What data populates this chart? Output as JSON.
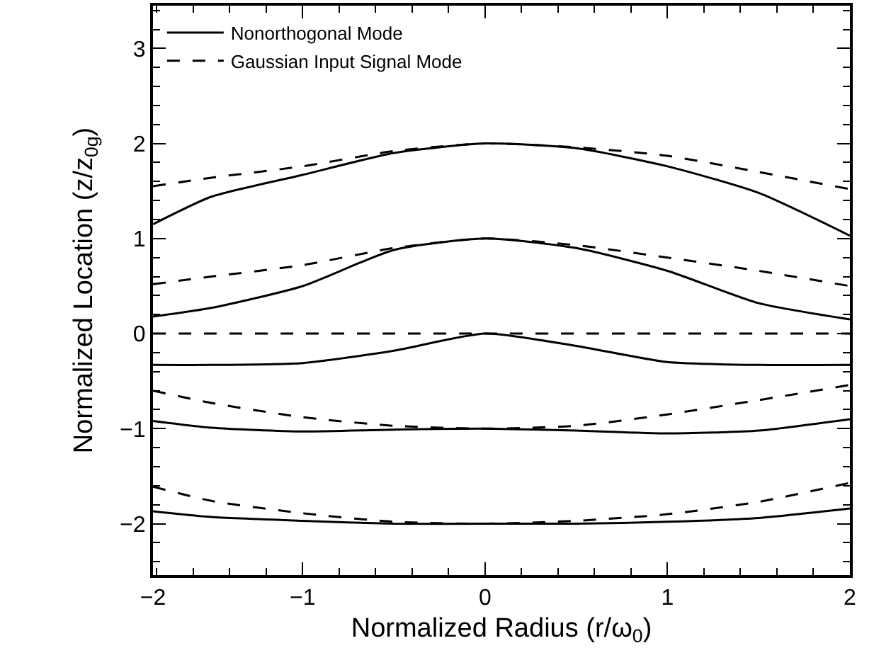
{
  "chart_data": {
    "type": "line",
    "xlabel": "Normalized Radius (r/ω$_{0}$)",
    "ylabel": "Normalized Location (z/z$_{0g}$)",
    "x": [
      -1.82,
      -1.5,
      -1,
      -0.5,
      0,
      0.5,
      1,
      1.5,
      2
    ],
    "series": [
      {
        "name": "Nonorthogonal Mode",
        "color": "#000000",
        "line_style": "solid",
        "values": [
          1.15,
          1.44,
          1.67,
          1.9,
          2,
          1.95,
          1.76,
          1.48,
          1.03
        ]
      },
      {
        "name": "Gaussian Input Signal Mode",
        "color": "#000000",
        "line_style": "dashed",
        "values": [
          1.55,
          1.64,
          1.76,
          1.92,
          2,
          1.96,
          1.87,
          1.7,
          1.52
        ]
      },
      {
        "color": "#000000",
        "line_style": "solid",
        "values": [
          0.18,
          0.27,
          0.5,
          0.88,
          1,
          0.9,
          0.66,
          0.32,
          0.15
        ]
      },
      {
        "color": "#000000",
        "line_style": "dashed",
        "values": [
          0.52,
          0.6,
          0.72,
          0.9,
          1,
          0.93,
          0.8,
          0.66,
          0.5
        ]
      },
      {
        "color": "#000000",
        "line_style": "solid",
        "values": [
          -0.33,
          -0.33,
          -0.31,
          -0.18,
          0,
          -0.13,
          -0.3,
          -0.33,
          -0.33
        ]
      },
      {
        "color": "#000000",
        "line_style": "dashed",
        "values": [
          0,
          0,
          0,
          0,
          0,
          0,
          0,
          0,
          0
        ]
      },
      {
        "color": "#000000",
        "line_style": "solid",
        "values": [
          -0.92,
          -0.99,
          -1.03,
          -1.01,
          -1,
          -1.02,
          -1.05,
          -1.02,
          -0.9
        ]
      },
      {
        "color": "#000000",
        "line_style": "dashed",
        "values": [
          -0.6,
          -0.73,
          -0.88,
          -0.97,
          -1,
          -0.97,
          -0.85,
          -0.7,
          -0.54
        ]
      },
      {
        "color": "#000000",
        "line_style": "solid",
        "values": [
          -1.87,
          -1.93,
          -1.97,
          -2,
          -2,
          -2,
          -1.98,
          -1.94,
          -1.84
        ]
      },
      {
        "color": "#000000",
        "line_style": "dashed",
        "values": [
          -1.61,
          -1.76,
          -1.89,
          -1.98,
          -2,
          -1.97,
          -1.9,
          -1.77,
          -1.57
        ]
      }
    ],
    "xlim": [
      -1.82,
      2
    ],
    "xticks": [
      {
        "value": -1.82,
        "label": "−2"
      },
      -1,
      0,
      1,
      2
    ],
    "ylim": [
      -2.54,
      3.45
    ],
    "yticks": [
      -2,
      -1,
      0,
      1,
      2,
      3
    ],
    "grid": false,
    "legend": "top left",
    "marker": "none"
  }
}
